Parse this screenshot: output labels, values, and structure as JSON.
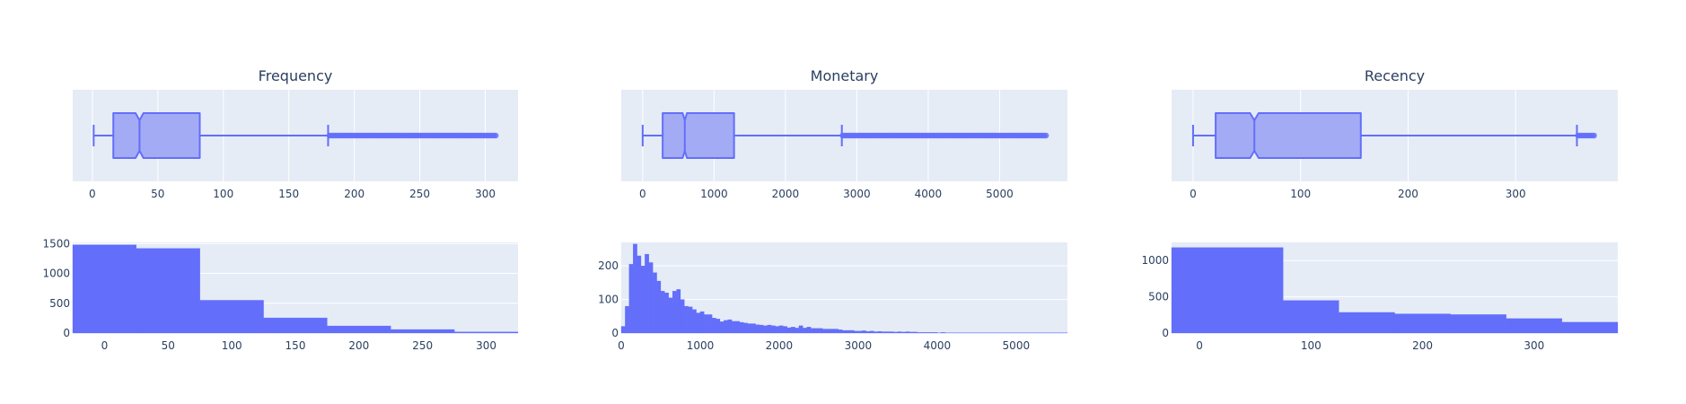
{
  "colors": {
    "plot_bg": "#e5ecf6",
    "grid": "#ffffff",
    "trace": "#636efa",
    "box_fill": "#a4abf5",
    "text": "#2a3f5f"
  },
  "chart_data": [
    {
      "id": "frequency-box",
      "type": "box",
      "title": "Frequency",
      "orientation": "horizontal",
      "notched": true,
      "xlim": [
        -15,
        325
      ],
      "xticks": [
        0,
        50,
        100,
        150,
        200,
        250,
        300
      ],
      "xtick_labels": [
        "0",
        "50",
        "100",
        "150",
        "200",
        "250",
        "300"
      ],
      "stats": {
        "lower_fence": 1,
        "q1": 16,
        "median": 36,
        "q3": 82,
        "upper_fence": 180,
        "notch_low": 33,
        "notch_high": 39
      },
      "outlier_range": [
        181,
        308
      ],
      "grid": true
    },
    {
      "id": "monetary-box",
      "type": "box",
      "title": "Monetary",
      "orientation": "horizontal",
      "notched": true,
      "xlim": [
        -300,
        5950
      ],
      "xticks": [
        0,
        1000,
        2000,
        3000,
        4000,
        5000
      ],
      "xtick_labels": [
        "0",
        "1000",
        "2000",
        "3000",
        "4000",
        "5000"
      ],
      "stats": {
        "lower_fence": 0,
        "q1": 280,
        "median": 590,
        "q3": 1280,
        "upper_fence": 2790,
        "notch_low": 560,
        "notch_high": 620
      },
      "outlier_range": [
        2800,
        5650
      ],
      "grid": true
    },
    {
      "id": "recency-box",
      "type": "box",
      "title": "Recency",
      "orientation": "horizontal",
      "notched": true,
      "xlim": [
        -20,
        395
      ],
      "xticks": [
        0,
        100,
        200,
        300
      ],
      "xtick_labels": [
        "0",
        "100",
        "200",
        "300"
      ],
      "stats": {
        "lower_fence": 0,
        "q1": 21,
        "median": 57,
        "q3": 156,
        "upper_fence": 357,
        "notch_low": 53,
        "notch_high": 61
      },
      "outlier_range": [
        358,
        373
      ],
      "grid": true
    },
    {
      "id": "frequency-hist",
      "type": "bar",
      "title": "",
      "bin_edges": [
        -25,
        25,
        75,
        125,
        175,
        225,
        275,
        325
      ],
      "values": [
        1480,
        1420,
        550,
        255,
        120,
        60,
        20
      ],
      "xlim": [
        -25,
        325
      ],
      "ylim": [
        0,
        1520
      ],
      "xticks": [
        0,
        50,
        100,
        150,
        200,
        250,
        300
      ],
      "xtick_labels": [
        "0",
        "50",
        "100",
        "150",
        "200",
        "250",
        "300"
      ],
      "yticks": [
        0,
        500,
        1000,
        1500
      ],
      "ytick_labels": [
        "0",
        "500",
        "1000",
        "1500"
      ],
      "grid": true
    },
    {
      "id": "monetary-hist",
      "type": "bar",
      "title": "",
      "bin_start": 0,
      "bin_width": 50,
      "values": [
        20,
        80,
        205,
        265,
        230,
        200,
        235,
        210,
        180,
        155,
        125,
        120,
        105,
        125,
        130,
        100,
        80,
        78,
        70,
        60,
        64,
        55,
        55,
        45,
        42,
        34,
        38,
        40,
        35,
        35,
        32,
        30,
        28,
        28,
        25,
        24,
        22,
        24,
        22,
        20,
        22,
        20,
        16,
        18,
        15,
        22,
        15,
        18,
        14,
        14,
        14,
        12,
        12,
        12,
        12,
        10,
        8,
        8,
        8,
        6,
        6,
        7,
        5,
        6,
        4,
        5,
        4,
        4,
        4,
        3,
        4,
        3,
        4,
        3,
        3,
        2,
        2,
        2,
        2,
        2,
        1,
        2,
        1,
        1,
        1,
        1,
        1,
        1,
        1,
        1,
        1,
        1,
        1,
        1,
        1,
        1,
        1,
        1,
        1,
        1,
        1,
        1,
        1,
        1,
        1,
        1,
        1,
        1,
        1,
        1,
        1,
        1,
        1
      ],
      "xlim": [
        0,
        5650
      ],
      "ylim": [
        0,
        270
      ],
      "xticks": [
        0,
        1000,
        2000,
        3000,
        4000,
        5000
      ],
      "xtick_labels": [
        "0",
        "1000",
        "2000",
        "3000",
        "4000",
        "5000"
      ],
      "yticks": [
        0,
        100,
        200
      ],
      "ytick_labels": [
        "0",
        "100",
        "200"
      ],
      "grid": true
    },
    {
      "id": "recency-hist",
      "type": "bar",
      "title": "",
      "bin_edges": [
        -25,
        75,
        125,
        175,
        225,
        275,
        325,
        375
      ],
      "values": [
        1180,
        450,
        285,
        265,
        255,
        200,
        150
      ],
      "xlim": [
        -25,
        375
      ],
      "ylim": [
        0,
        1250
      ],
      "xticks": [
        0,
        100,
        200,
        300
      ],
      "xtick_labels": [
        "0",
        "100",
        "200",
        "300"
      ],
      "yticks": [
        0,
        500,
        1000
      ],
      "ytick_labels": [
        "0",
        "500",
        "1000"
      ],
      "grid": true
    }
  ]
}
